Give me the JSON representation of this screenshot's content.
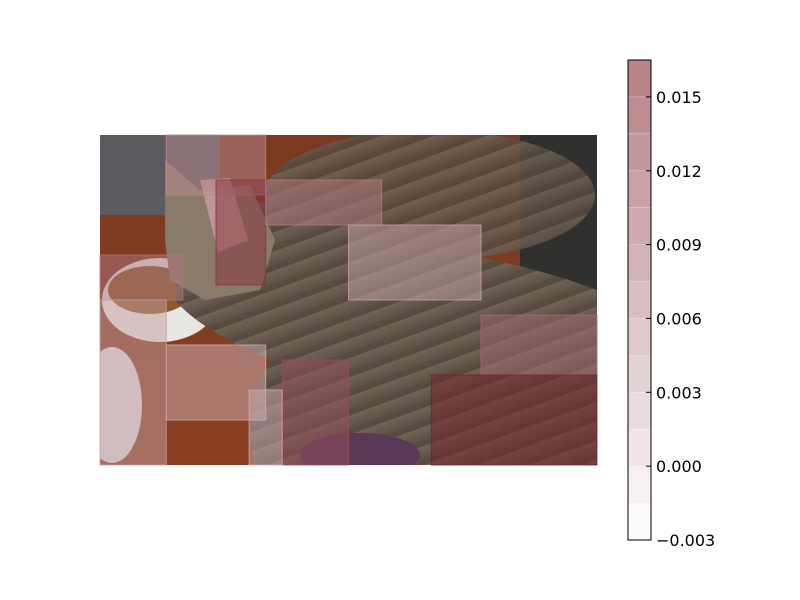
{
  "chart_data": {
    "type": "heatmap",
    "title": "",
    "xlabel": "",
    "ylabel": "",
    "background_image": {
      "subject": "cat-photo",
      "visible": true
    },
    "colormap": {
      "name": "Reds",
      "low_color": "#ffffff",
      "high_color": "#67000d",
      "alpha": 0.5
    },
    "colorbar": {
      "vmin": -0.003,
      "vmax": 0.0165,
      "levels": [
        -0.003,
        -0.0015,
        0.0,
        0.0015,
        0.003,
        0.0045,
        0.006,
        0.0075,
        0.009,
        0.0105,
        0.012,
        0.0135,
        0.015,
        0.0165
      ],
      "ticks": [
        -0.003,
        0.0,
        0.003,
        0.006,
        0.009,
        0.012,
        0.015
      ],
      "tick_labels": [
        "−0.003",
        "0.000",
        "0.003",
        "0.006",
        "0.009",
        "0.012",
        "0.015"
      ]
    },
    "grid": {
      "rows": 11,
      "cols": 15,
      "extent": [
        0,
        15,
        0,
        11
      ]
    },
    "regions": [
      {
        "x0": 2,
        "x1": 5,
        "y0": 0,
        "y1": 2,
        "value": 0.006
      },
      {
        "x0": 3.5,
        "x1": 5,
        "y0": 1.5,
        "y1": 5,
        "value": 0.0125
      },
      {
        "x0": 0,
        "x1": 2.5,
        "y0": 4,
        "y1": 5.5,
        "value": 0.0075
      },
      {
        "x0": 5,
        "x1": 8.5,
        "y0": 1.5,
        "y1": 3,
        "value": 0.007
      },
      {
        "x0": 7.5,
        "x1": 11.5,
        "y0": 3,
        "y1": 5.5,
        "value": 0.004
      },
      {
        "x0": 11.5,
        "x1": 15,
        "y0": 6,
        "y1": 8,
        "value": 0.0085
      },
      {
        "x0": 2,
        "x1": 5,
        "y0": 7,
        "y1": 9.5,
        "value": 0.003
      },
      {
        "x0": 5.5,
        "x1": 7.5,
        "y0": 7.5,
        "y1": 11,
        "value": 0.0105
      },
      {
        "x0": 10,
        "x1": 15,
        "y0": 8,
        "y1": 11,
        "value": 0.014
      },
      {
        "x0": 4.5,
        "x1": 5.5,
        "y0": 8.5,
        "y1": 11,
        "value": 0.0035
      },
      {
        "x0": 0,
        "x1": 2,
        "y0": 5.5,
        "y1": 11,
        "value": 0.0045
      }
    ]
  }
}
